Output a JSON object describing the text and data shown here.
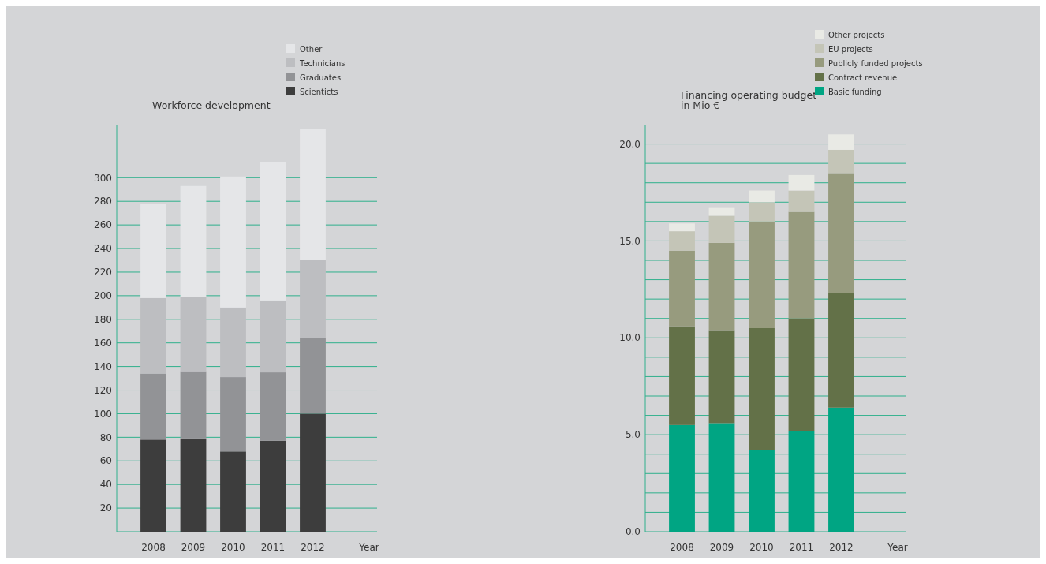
{
  "chart_data": [
    {
      "type": "bar",
      "title": "Workforce development",
      "xlabel": "Year",
      "categories": [
        "2008",
        "2009",
        "2010",
        "2011",
        "2012"
      ],
      "stacked": true,
      "legend": "top",
      "grid": "y",
      "ylim": [
        0,
        345
      ],
      "yticks": [
        {
          "value": 0,
          "label": null
        },
        20,
        40,
        60,
        80,
        100,
        120,
        140,
        160,
        180,
        200,
        220,
        240,
        260,
        280,
        300
      ],
      "series": [
        {
          "name": "Scienticts",
          "color": "#3d3d3d",
          "values": [
            78,
            79,
            68,
            77,
            100
          ]
        },
        {
          "name": "Graduates",
          "color": "#929396",
          "values": [
            56,
            57,
            63,
            58,
            64
          ]
        },
        {
          "name": "Technicians",
          "color": "#bdbec1",
          "values": [
            64,
            63,
            59,
            61,
            66
          ]
        },
        {
          "name": "Other",
          "color": "#e5e6e8",
          "values": [
            80,
            94,
            111,
            117,
            111
          ]
        }
      ]
    },
    {
      "type": "bar",
      "title": "Financing operating budget\nin Mio €",
      "xlabel": "Year",
      "categories": [
        "2008",
        "2009",
        "2010",
        "2011",
        "2012"
      ],
      "stacked": true,
      "legend": "top",
      "grid": "y",
      "ylim": [
        0,
        21
      ],
      "yticks": [
        {
          "value": 0,
          "label": "0.0"
        },
        {
          "value": 1,
          "label": null
        },
        {
          "value": 2,
          "label": null
        },
        {
          "value": 3,
          "label": null
        },
        {
          "value": 4,
          "label": null
        },
        {
          "value": 5,
          "label": "5.0"
        },
        {
          "value": 6,
          "label": null
        },
        {
          "value": 7,
          "label": null
        },
        {
          "value": 8,
          "label": null
        },
        {
          "value": 9,
          "label": null
        },
        {
          "value": 10,
          "label": "10.0"
        },
        {
          "value": 11,
          "label": null
        },
        {
          "value": 12,
          "label": null
        },
        {
          "value": 13,
          "label": null
        },
        {
          "value": 14,
          "label": null
        },
        {
          "value": 15,
          "label": "15.0"
        },
        {
          "value": 16,
          "label": null
        },
        {
          "value": 17,
          "label": null
        },
        {
          "value": 18,
          "label": null
        },
        {
          "value": 19,
          "label": null
        },
        {
          "value": 20,
          "label": "20.0"
        }
      ],
      "series": [
        {
          "name": "Basic funding",
          "color": "#00a583",
          "values": [
            5.5,
            5.6,
            4.2,
            5.2,
            6.4
          ]
        },
        {
          "name": "Contract revenue",
          "color": "#637148",
          "values": [
            5.1,
            4.8,
            6.3,
            5.8,
            5.9
          ]
        },
        {
          "name": "Publicly funded projects",
          "color": "#979b7e",
          "values": [
            3.9,
            4.5,
            5.5,
            5.5,
            6.2
          ]
        },
        {
          "name": "EU projects",
          "color": "#c4c5b7",
          "values": [
            1.0,
            1.4,
            1.0,
            1.1,
            1.2
          ]
        },
        {
          "name": "Other projects",
          "color": "#e9eae5",
          "values": [
            0.4,
            0.4,
            0.6,
            0.8,
            0.8
          ]
        }
      ]
    }
  ]
}
